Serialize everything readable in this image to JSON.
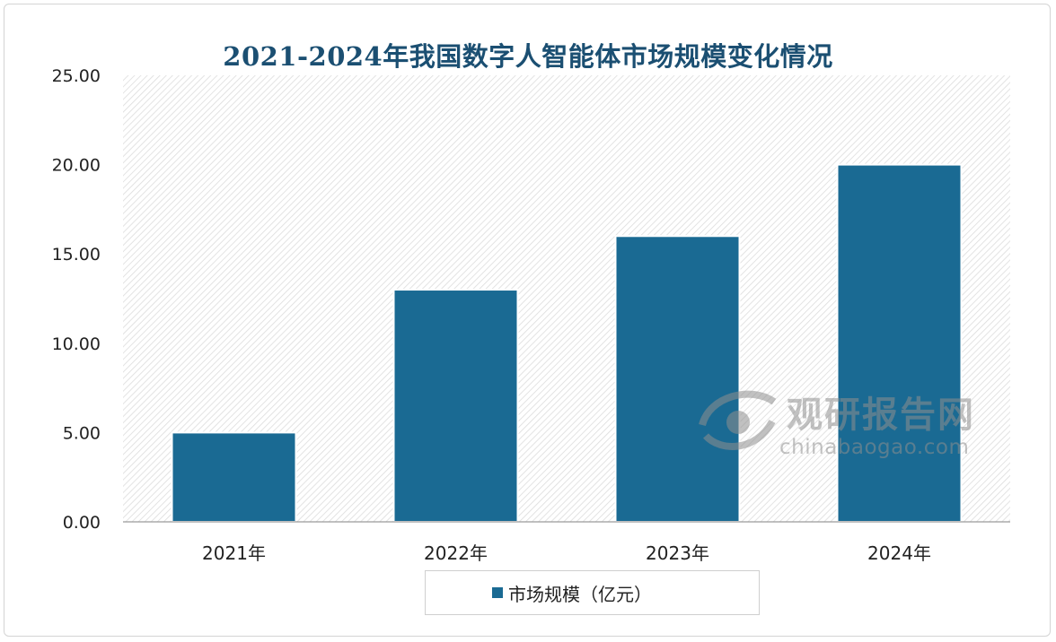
{
  "chart_data": {
    "type": "bar",
    "title": "2021-2024年我国数字人智能体市场规模变化情况",
    "categories": [
      "2021年",
      "2022年",
      "2023年",
      "2024年"
    ],
    "series": [
      {
        "name": "市场规模（亿元）",
        "values": [
          5.0,
          13.0,
          16.0,
          20.0
        ],
        "color": "#1a6a93"
      }
    ],
    "ylim": [
      0,
      25
    ],
    "yticks": [
      "0.00",
      "5.00",
      "10.00",
      "15.00",
      "20.00",
      "25.00"
    ],
    "xlabel": "",
    "ylabel": "",
    "grid": false,
    "background": "diagonal-hatch",
    "legend_position": "bottom"
  },
  "watermark": {
    "name_cn": "观研报告网",
    "domain": "chinabaogao.com"
  },
  "colors": {
    "title": "#1b4f72",
    "bar": "#1a6a93",
    "axis_text": "#222222"
  }
}
